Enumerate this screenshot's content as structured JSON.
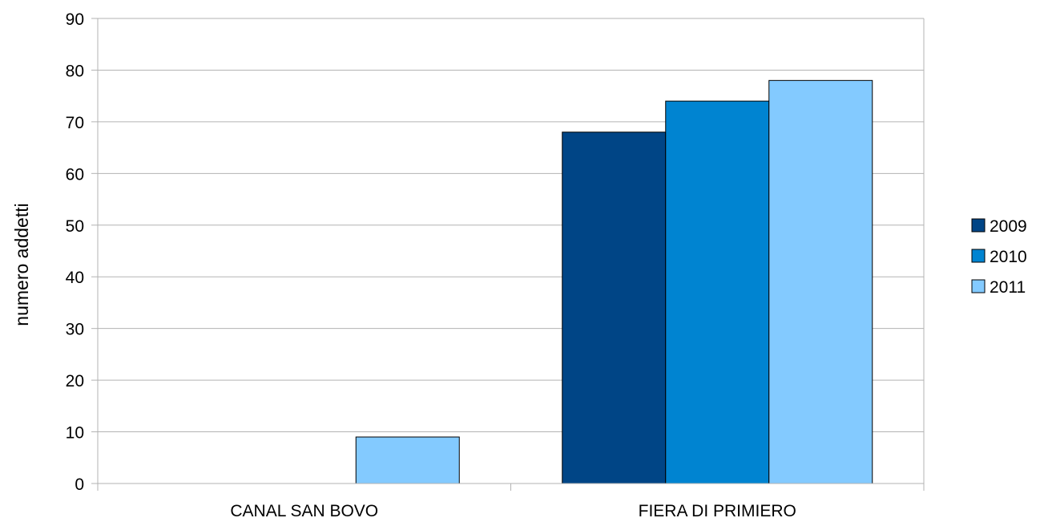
{
  "chart_data": {
    "type": "bar",
    "categories": [
      "CANAL SAN BOVO",
      "FIERA DI PRIMIERO"
    ],
    "series": [
      {
        "name": "2009",
        "values": [
          0,
          68
        ],
        "color": "#004586"
      },
      {
        "name": "2010",
        "values": [
          0,
          74
        ],
        "color": "#0084d1"
      },
      {
        "name": "2011",
        "values": [
          9,
          78
        ],
        "color": "#83caff"
      }
    ],
    "title": "",
    "xlabel": "",
    "ylabel": "numero addetti",
    "ylim": [
      0,
      90
    ],
    "yticks": [
      0,
      10,
      20,
      30,
      40,
      50,
      60,
      70,
      80,
      90
    ],
    "grid": true,
    "legend_position": "right"
  }
}
